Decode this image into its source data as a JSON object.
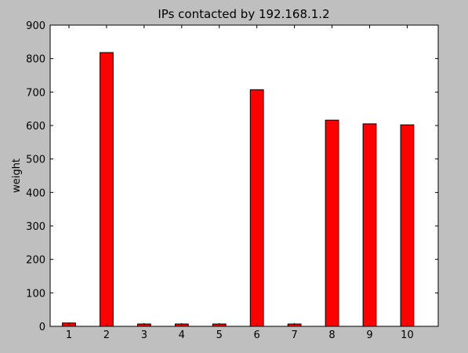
{
  "chart_data": {
    "type": "bar",
    "title": "IPs contacted by 192.168.1.2",
    "xlabel": "",
    "ylabel": "weight",
    "categories": [
      "1",
      "2",
      "3",
      "4",
      "5",
      "6",
      "7",
      "8",
      "9",
      "10"
    ],
    "values": [
      10,
      818,
      7,
      7,
      7,
      707,
      7,
      616,
      605,
      602
    ],
    "ylim": [
      0,
      900
    ],
    "yticks": [
      "0",
      "100",
      "200",
      "300",
      "400",
      "500",
      "600",
      "700",
      "800",
      "900"
    ],
    "bar_color": "#ff0000",
    "edge_color": "#000000",
    "plot_background": "#ffffff",
    "figure_background": "#bfbfbf",
    "grid": false
  }
}
